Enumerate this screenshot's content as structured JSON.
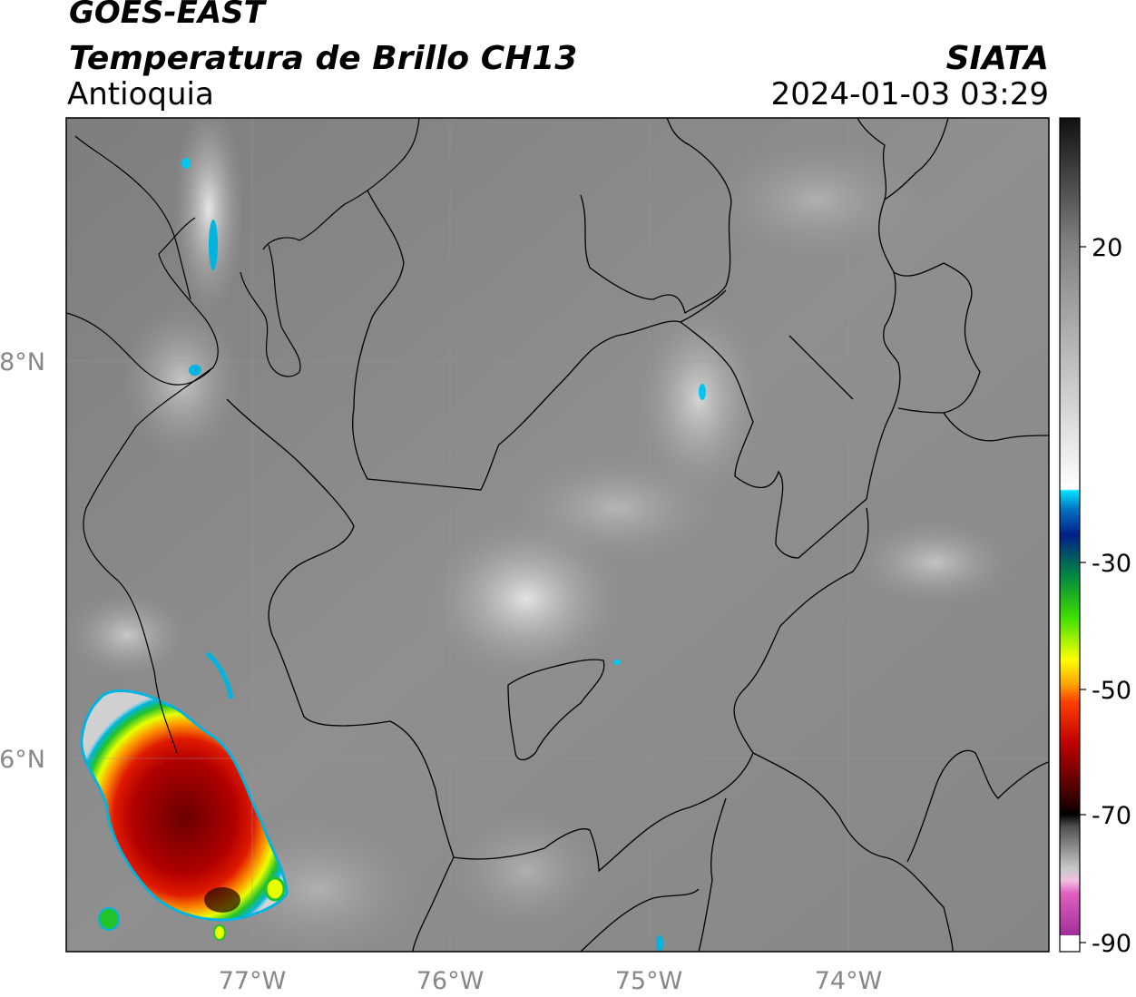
{
  "header": {
    "satellite": "GOES-EAST",
    "product": "Temperatura de Brillo CH13",
    "region": "Antioquia",
    "agency": "SIATA",
    "datetime": "2024-01-03 03:29"
  },
  "map": {
    "lat_labels": [
      "8°N",
      "6°N"
    ],
    "lon_labels": [
      "77°W",
      "76°W",
      "75°W",
      "74°W"
    ],
    "colors": {
      "frame": "#000000",
      "grid": "#999999",
      "background": "#8a8a8a"
    }
  },
  "colorbar": {
    "tick_labels": [
      "20",
      "-30",
      "-50",
      "-70",
      "-90"
    ],
    "range": [
      -90,
      30
    ]
  }
}
